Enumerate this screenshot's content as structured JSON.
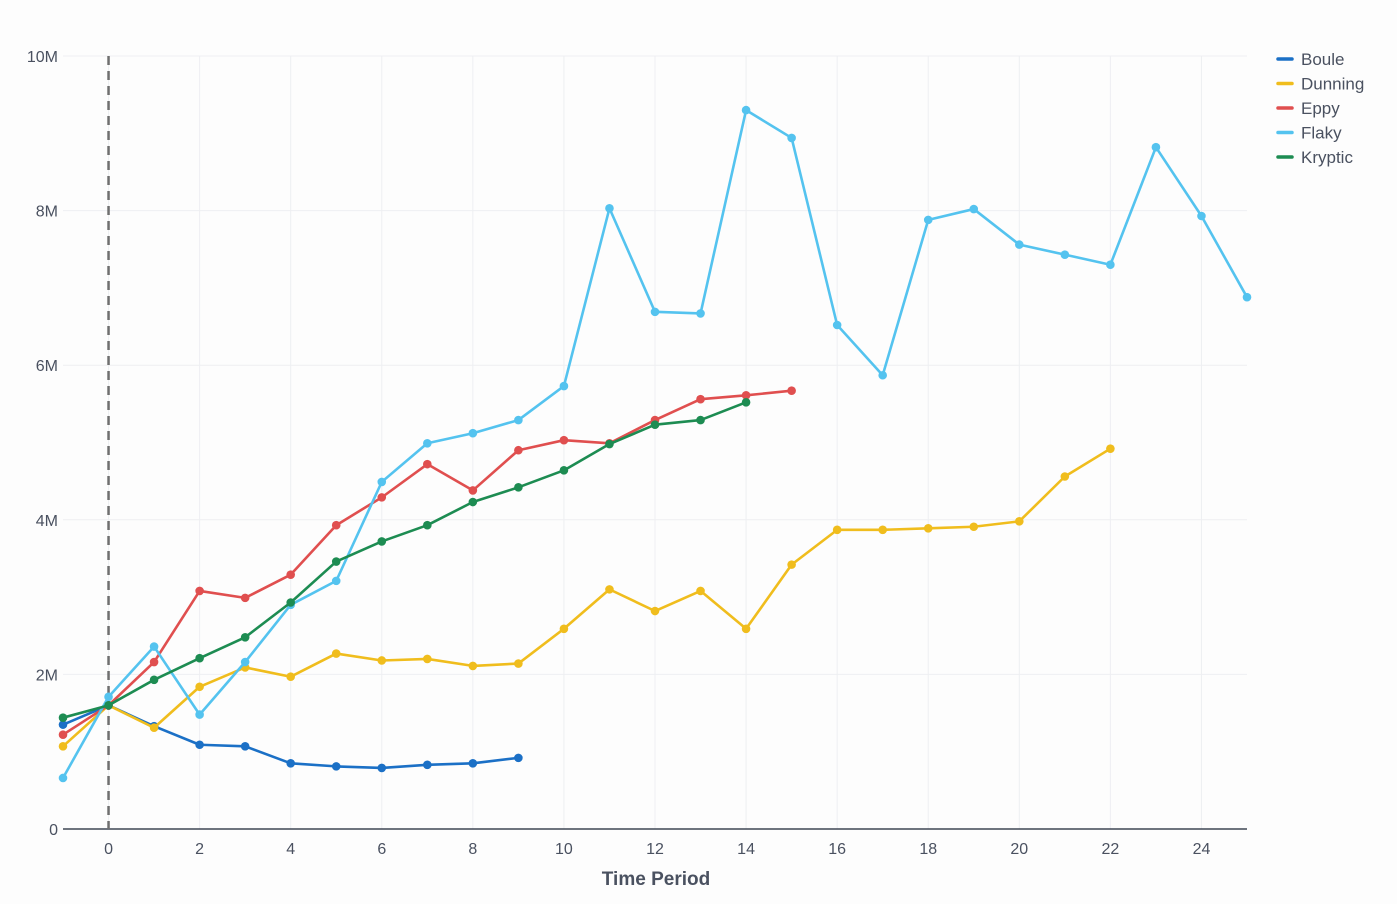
{
  "chart_data": {
    "type": "line",
    "title": "",
    "xlabel": "Time Period",
    "ylabel": "",
    "xlim": [
      -1,
      25
    ],
    "ylim": [
      0,
      10000000
    ],
    "x_ticks": [
      0,
      2,
      4,
      6,
      8,
      10,
      12,
      14,
      16,
      18,
      20,
      22,
      24
    ],
    "x_tick_labels": [
      "0",
      "2",
      "4",
      "6",
      "8",
      "10",
      "12",
      "14",
      "16",
      "18",
      "20",
      "22",
      "24"
    ],
    "y_ticks": [
      0,
      2000000,
      4000000,
      6000000,
      8000000,
      10000000
    ],
    "y_tick_labels": [
      "0",
      "2M",
      "4M",
      "6M",
      "8M",
      "10M"
    ],
    "grid": true,
    "reference_line": {
      "x": 0,
      "style": "dashed",
      "color": "#6f6f6f"
    },
    "legend_position": "top-right",
    "series": [
      {
        "name": "Boule",
        "color": "#1b70c6",
        "x": [
          -1,
          0,
          1,
          2,
          3,
          4,
          5,
          6,
          7,
          8,
          9
        ],
        "values": [
          1350000,
          1600000,
          1330000,
          1090000,
          1070000,
          850000,
          810000,
          790000,
          830000,
          850000,
          920000
        ]
      },
      {
        "name": "Dunning",
        "color": "#f0bd1d",
        "x": [
          -1,
          0,
          1,
          2,
          3,
          4,
          5,
          6,
          7,
          8,
          9,
          10,
          11,
          12,
          13,
          14,
          15,
          16,
          17,
          18,
          19,
          20,
          21,
          22
        ],
        "values": [
          1070000,
          1600000,
          1310000,
          1840000,
          2090000,
          1970000,
          2270000,
          2180000,
          2200000,
          2110000,
          2140000,
          2590000,
          3100000,
          2820000,
          3080000,
          2590000,
          3420000,
          3870000,
          3870000,
          3890000,
          3910000,
          3980000,
          4560000,
          4920000
        ]
      },
      {
        "name": "Eppy",
        "color": "#e04f4f",
        "x": [
          -1,
          0,
          1,
          2,
          3,
          4,
          5,
          6,
          7,
          8,
          9,
          10,
          11,
          12,
          13,
          14,
          15
        ],
        "values": [
          1220000,
          1600000,
          2160000,
          3080000,
          2990000,
          3290000,
          3930000,
          4290000,
          4720000,
          4380000,
          4900000,
          5030000,
          4990000,
          5290000,
          5560000,
          5610000,
          5670000
        ]
      },
      {
        "name": "Flaky",
        "color": "#54c3ef",
        "x": [
          -1,
          0,
          1,
          2,
          3,
          4,
          5,
          6,
          7,
          8,
          9,
          10,
          11,
          12,
          13,
          14,
          15,
          16,
          17,
          18,
          19,
          20,
          21,
          22,
          23,
          24,
          25
        ],
        "values": [
          660000,
          1710000,
          2360000,
          1480000,
          2160000,
          2900000,
          3210000,
          4490000,
          4990000,
          5120000,
          5290000,
          5730000,
          8030000,
          6690000,
          6670000,
          9300000,
          8940000,
          6520000,
          5870000,
          7880000,
          8020000,
          7560000,
          7430000,
          7300000,
          8820000,
          7930000,
          6880000
        ]
      },
      {
        "name": "Kryptic",
        "color": "#1d8c52",
        "x": [
          -1,
          0,
          1,
          2,
          3,
          4,
          5,
          6,
          7,
          8,
          9,
          10,
          11,
          12,
          13,
          14
        ],
        "values": [
          1440000,
          1600000,
          1930000,
          2210000,
          2480000,
          2930000,
          3460000,
          3720000,
          3930000,
          4230000,
          4420000,
          4640000,
          4980000,
          5230000,
          5290000,
          5520000
        ]
      }
    ]
  }
}
